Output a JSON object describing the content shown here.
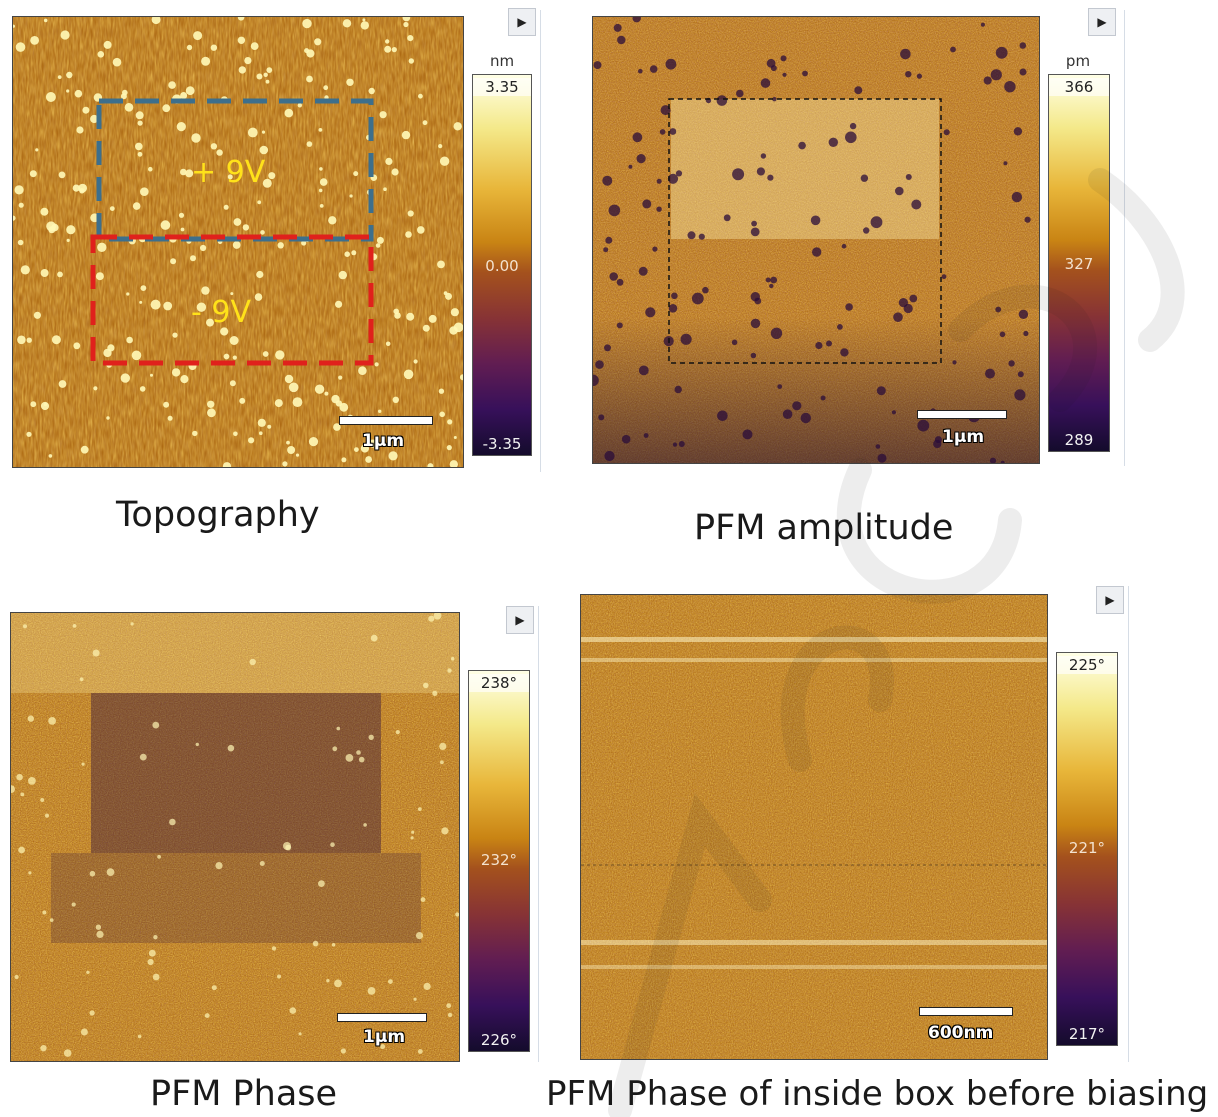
{
  "panels": {
    "topography": {
      "caption": "Topography",
      "unit": "nm",
      "ticks": {
        "top": "3.35",
        "mid": "0.00",
        "bottom": "-3.35"
      },
      "scale_label": "1μm",
      "annotations": {
        "positive": "+ 9V",
        "negative": "- 9V"
      },
      "box_colors": {
        "positive": "#3d6f8c",
        "negative": "#e0211c"
      }
    },
    "amplitude": {
      "caption": "PFM amplitude",
      "unit": "pm",
      "ticks": {
        "top": "366",
        "mid": "327",
        "bottom": "289"
      },
      "scale_label": "1μm"
    },
    "phase": {
      "caption": "PFM Phase",
      "ticks": {
        "top": "238°",
        "mid": "232°",
        "bottom": "226°"
      },
      "scale_label": "1μm"
    },
    "phase_before": {
      "caption": "PFM Phase of inside box before biasing",
      "ticks": {
        "top": "225°",
        "mid": "221°",
        "bottom": "217°"
      },
      "scale_label": "600nm"
    }
  },
  "icons": {
    "expand": "play-triangle-icon"
  },
  "expand_glyph": "▶",
  "colors": {
    "afm_bright": "#fff7b5",
    "afm_mid": "#c47a12",
    "afm_dark": "#2a0c3a",
    "annotation_yellow": "#ffe21a",
    "watermark": "#1a1a1a"
  }
}
